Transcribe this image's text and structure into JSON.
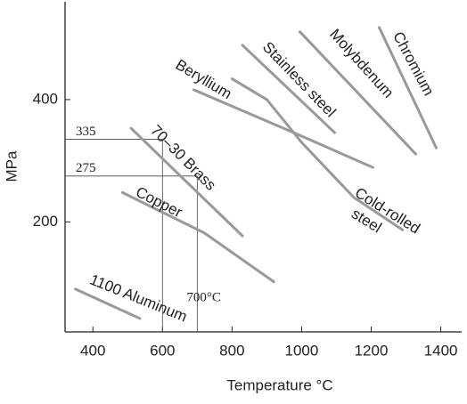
{
  "chart_data": {
    "type": "line",
    "x_label": "Temperature °C",
    "y_label": "MPa",
    "xlim": [
      320,
      1460
    ],
    "ylim": [
      20,
      560
    ],
    "xticks": [
      400,
      600,
      800,
      1000,
      1200,
      1400
    ],
    "yticks": [
      200,
      400
    ],
    "series": [
      {
        "name": "1100 Aluminum",
        "color": "#999999",
        "x": [
          350,
          535
        ],
        "values": [
          90,
          42
        ]
      },
      {
        "name": "Copper",
        "color": "#999999",
        "x": [
          485,
          720,
          920
        ],
        "values": [
          248,
          182,
          102
        ]
      },
      {
        "name": "70–30 Brass",
        "color": "#999999",
        "x": [
          510,
          830
        ],
        "values": [
          353,
          177
        ]
      },
      {
        "name": "Beryllium",
        "color": "#999999",
        "x": [
          690,
          977,
          1205
        ],
        "values": [
          416,
          346,
          289
        ]
      },
      {
        "name": "Cold-rolled steel",
        "color": "#999999",
        "x": [
          800,
          900,
          1000,
          1150,
          1290
        ],
        "values": [
          434,
          400,
          330,
          240,
          187
        ]
      },
      {
        "name": "Stainless steel",
        "color": "#999999",
        "x": [
          830,
          1095
        ],
        "values": [
          489,
          346
        ]
      },
      {
        "name": "Molybdenum",
        "color": "#999999",
        "x": [
          995,
          1328
        ],
        "values": [
          511,
          311
        ]
      },
      {
        "name": "Chromium",
        "color": "#999999",
        "x": [
          1223,
          1387
        ],
        "values": [
          518,
          321
        ]
      }
    ],
    "reference_lines": {
      "y": [
        335,
        275
      ],
      "x": [
        600,
        {
          "value": 700,
          "label": "700°C"
        }
      ]
    }
  }
}
